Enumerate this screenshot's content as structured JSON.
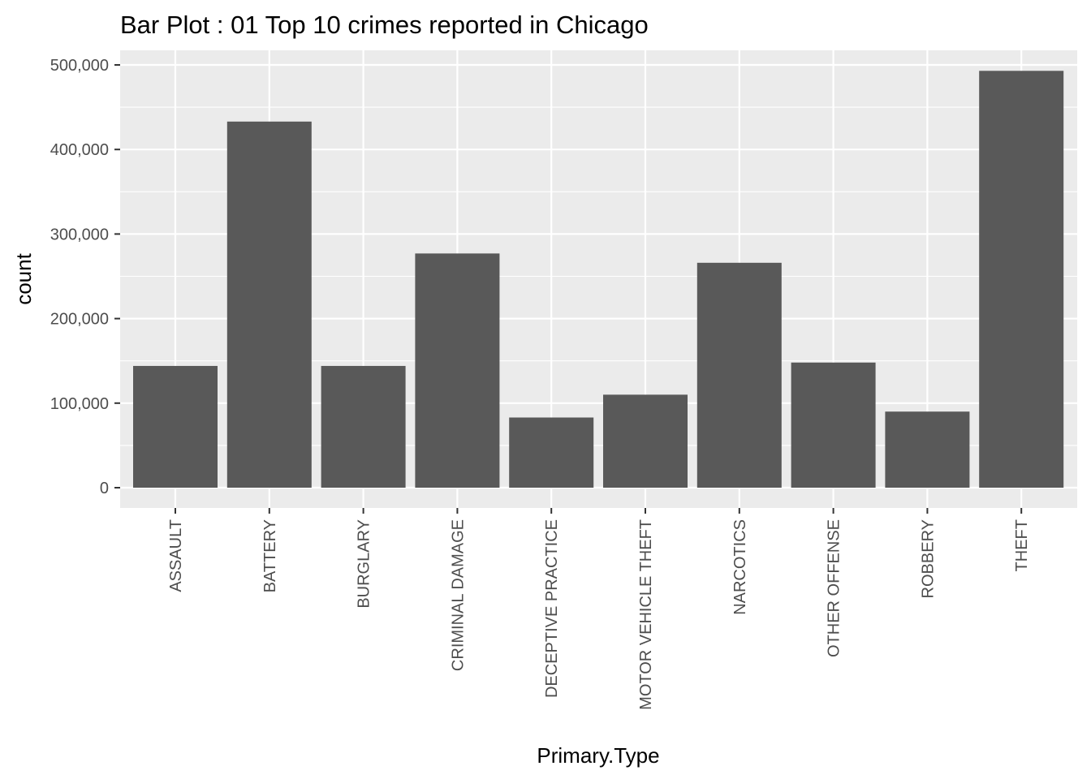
{
  "chart_data": {
    "type": "bar",
    "title": "Bar Plot : 01 Top 10 crimes reported in Chicago",
    "xlabel": "Primary.Type",
    "ylabel": "count",
    "categories": [
      "ASSAULT",
      "BATTERY",
      "BURGLARY",
      "CRIMINAL DAMAGE",
      "DECEPTIVE PRACTICE",
      "MOTOR VEHICLE THEFT",
      "NARCOTICS",
      "OTHER OFFENSE",
      "ROBBERY",
      "THEFT"
    ],
    "values": [
      144000,
      433000,
      144000,
      277000,
      83000,
      110000,
      266000,
      148000,
      90000,
      493000
    ],
    "ylim": [
      0,
      520000
    ],
    "yticks": [
      0,
      100000,
      200000,
      300000,
      400000,
      500000
    ],
    "ytick_labels": [
      "0",
      "100,000",
      "200,000",
      "300,000",
      "400,000",
      "500,000"
    ],
    "grid": true,
    "legend": "none",
    "colors": {
      "bar": "#595959",
      "panel_background": "#ebebeb",
      "grid": "#ffffff",
      "tick_mark": "#333333",
      "tick_text": "#4d4d4d",
      "title_text": "#000000"
    }
  }
}
